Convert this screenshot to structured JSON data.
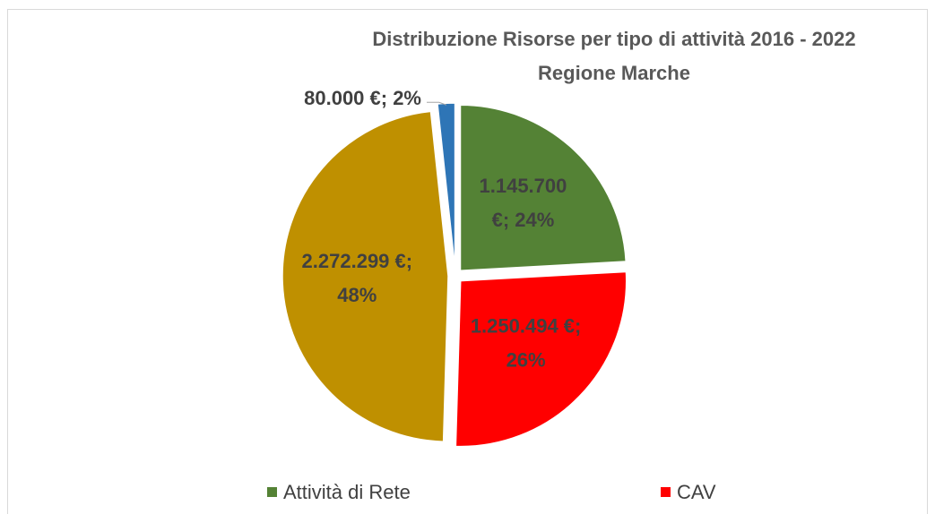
{
  "chart_data": {
    "type": "pie",
    "title": "Distribuzione Risorse per tipo di attività  2016 - 2022",
    "subtitle": "Regione Marche",
    "categories": [
      "Attività di Rete",
      "CAV",
      null,
      null
    ],
    "values": [
      1145700,
      1250494,
      2272299,
      80000
    ],
    "value_labels": [
      [
        "1.145.700",
        "€; 24%"
      ],
      [
        "1.250.494 €;",
        "26%"
      ],
      [
        "2.272.299 €;",
        "48%"
      ],
      [
        "80.000 €; 2%"
      ]
    ],
    "colors": [
      "#548235",
      "#ff0000",
      "#bf9000",
      "#2e75b6"
    ]
  }
}
